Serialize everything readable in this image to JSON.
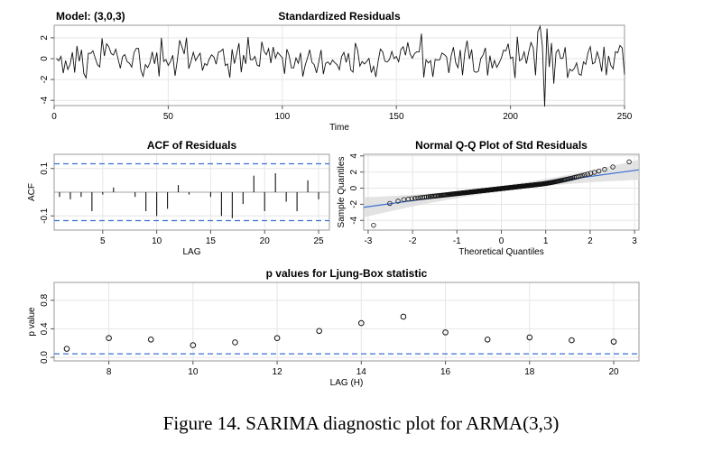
{
  "model_label": "Model: (3,0,3)",
  "caption": "Figure 14. SARIMA diagnostic plot for ARMA(3,3)",
  "colors": {
    "ref_line": "#3b6fd4",
    "grid": "#e6e6e6",
    "band": "#d9d9d9"
  },
  "chart_data": [
    {
      "type": "line",
      "title": "Standardized Residuals",
      "xlabel": "Time",
      "ylabel": "",
      "xlim": [
        0,
        250
      ],
      "ylim": [
        -4.5,
        3.2
      ],
      "xticks": [
        0,
        50,
        100,
        150,
        200,
        250
      ],
      "yticks": [
        -4,
        -2,
        0,
        2
      ],
      "seed": 20230314,
      "n": 250,
      "overrides": [
        [
          210,
          -1.6
        ],
        [
          211,
          2.6
        ],
        [
          212,
          3.1
        ],
        [
          213,
          1.2
        ],
        [
          214,
          -4.6
        ],
        [
          215,
          2.9
        ],
        [
          216,
          -0.8
        ],
        [
          217,
          1.5
        ],
        [
          218,
          -2.4
        ],
        [
          219,
          0.6
        ],
        [
          130,
          -1.3
        ],
        [
          131,
          1.5
        ],
        [
          160,
          2.4
        ],
        [
          161,
          -1.8
        ]
      ]
    },
    {
      "type": "bar",
      "title": "ACF of Residuals",
      "xlabel": "LAG",
      "ylabel": "ACF",
      "xlim": [
        0.5,
        26
      ],
      "ylim": [
        -0.16,
        0.16
      ],
      "xticks": [
        5,
        10,
        15,
        20,
        25
      ],
      "yticks": [
        -0.1,
        0.1
      ],
      "conf_bound": 0.12,
      "lags": [
        1,
        2,
        3,
        4,
        5,
        6,
        7,
        8,
        9,
        10,
        11,
        12,
        13,
        14,
        15,
        16,
        17,
        18,
        19,
        20,
        21,
        22,
        23,
        24,
        25
      ],
      "values": [
        -0.02,
        -0.03,
        -0.02,
        -0.08,
        -0.01,
        0.02,
        0.0,
        -0.02,
        -0.08,
        -0.1,
        -0.07,
        0.03,
        -0.01,
        0.0,
        -0.02,
        -0.1,
        -0.11,
        -0.05,
        0.07,
        -0.08,
        0.08,
        -0.04,
        -0.08,
        0.05,
        -0.03
      ]
    },
    {
      "type": "scatter",
      "title": "Normal Q-Q Plot of Std Residuals",
      "xlabel": "Theoretical Quantiles",
      "ylabel": "Sample Quantiles",
      "xlim": [
        -3.1,
        3.1
      ],
      "ylim": [
        -5.2,
        4.2
      ],
      "xticks": [
        -3,
        -2,
        -1,
        0,
        1,
        2,
        3
      ],
      "yticks": [
        -4,
        -2,
        0,
        2,
        4
      ],
      "n": 250,
      "slope": 0.75,
      "intercept": -0.05,
      "band_halfwidth_center": 0.35,
      "band_halfwidth_edge": 1.2
    },
    {
      "type": "scatter",
      "title": "p values for Ljung-Box statistic",
      "xlabel": "LAG (H)",
      "ylabel": "p value",
      "xlim": [
        6.7,
        20.6
      ],
      "ylim": [
        -0.05,
        1.05
      ],
      "xticks": [
        8,
        10,
        12,
        14,
        16,
        18,
        20
      ],
      "yticks": [
        0.0,
        0.4,
        0.8
      ],
      "ytick_labels": [
        "0.0",
        "0.4",
        "0.8"
      ],
      "ref_line": 0.05,
      "x": [
        7,
        8,
        9,
        10,
        11,
        12,
        13,
        14,
        15,
        16,
        17,
        18,
        19,
        20
      ],
      "values": [
        0.12,
        0.27,
        0.25,
        0.17,
        0.21,
        0.27,
        0.37,
        0.48,
        0.57,
        0.35,
        0.25,
        0.28,
        0.24,
        0.22
      ]
    }
  ]
}
